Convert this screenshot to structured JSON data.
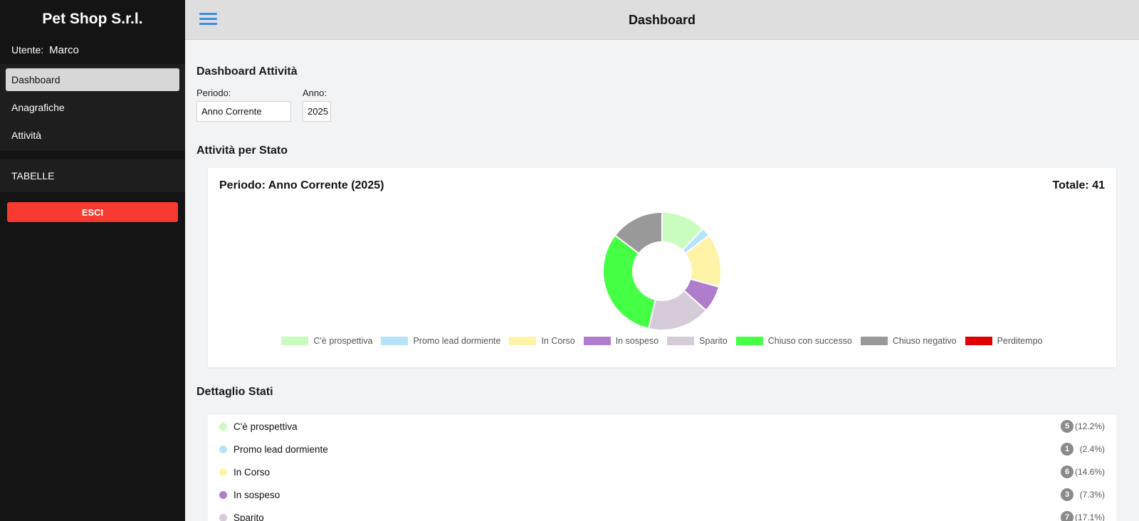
{
  "sidebar": {
    "brand": "Pet Shop S.r.l.",
    "user_label": "Utente:",
    "user_name": "Marco",
    "nav": [
      {
        "label": "Dashboard",
        "active": true
      },
      {
        "label": "Anagrafiche",
        "active": false
      },
      {
        "label": "Attività",
        "active": false
      }
    ],
    "tables_label": "TABELLE",
    "logout_label": "ESCI"
  },
  "header": {
    "title": "Dashboard",
    "menu_icon": "hamburger-menu-icon"
  },
  "main": {
    "dashboard_title": "Dashboard Attività",
    "period_label": "Periodo:",
    "period_value": "Anno Corrente",
    "year_label": "Anno:",
    "year_value": "2025",
    "by_state_title": "Attività per Stato",
    "chart_card": {
      "period_text": "Periodo: Anno Corrente (2025)",
      "total_text": "Totale: 41"
    },
    "detail_title": "Dettaglio Stati",
    "details": [
      {
        "name": "C'è prospettiva",
        "count": "5",
        "percent": "(12.2%)",
        "color": "#c9fcbf"
      },
      {
        "name": "Promo lead dormiente",
        "count": "1",
        "percent": "(2.4%)",
        "color": "#b6e3f7"
      },
      {
        "name": "In Corso",
        "count": "6",
        "percent": "(14.6%)",
        "color": "#fff3a8"
      },
      {
        "name": "In sospeso",
        "count": "3",
        "percent": "(7.3%)",
        "color": "#b07ccc"
      },
      {
        "name": "Sparito",
        "count": "7",
        "percent": "(17.1%)",
        "color": "#d6cbd9"
      }
    ]
  },
  "chart_data": {
    "type": "pie",
    "title": "",
    "total": 41,
    "legend_position": "bottom",
    "categories": [
      "C'è prospettiva",
      "Promo lead dormiente",
      "In Corso",
      "In sospeso",
      "Sparito",
      "Chiuso con successo",
      "Chiuso negativo",
      "Perditempo"
    ],
    "values": [
      5,
      1,
      6,
      3,
      7,
      13,
      6,
      0
    ],
    "colors": [
      "#c9fcbf",
      "#b6e3f7",
      "#fff3a8",
      "#b07ccc",
      "#d6cbd9",
      "#45ff45",
      "#999999",
      "#e00000"
    ]
  }
}
